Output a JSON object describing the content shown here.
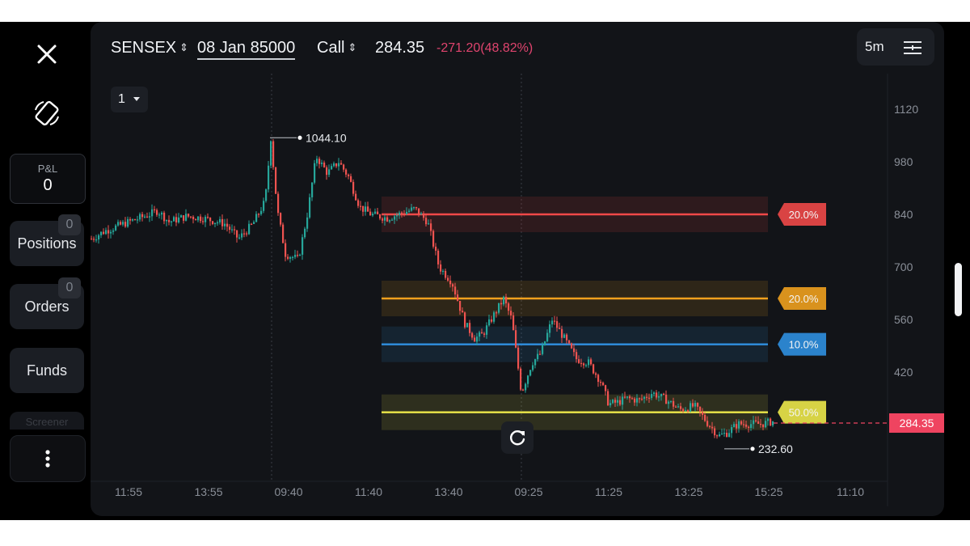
{
  "header": {
    "symbol": "SENSEX",
    "expiry": "08 Jan 85000",
    "option_type": "Call",
    "price": "284.35",
    "change": "-271.20(48.82%)",
    "timeframe": "5m"
  },
  "sidebar": {
    "pnl_label": "P&L",
    "pnl_value": "0",
    "positions_label": "Positions",
    "positions_count": "0",
    "orders_label": "Orders",
    "orders_count": "0",
    "funds_label": "Funds",
    "peek_label": "Screener"
  },
  "layout_selector": "1",
  "colors": {
    "bull": "#26a69a",
    "bear": "#ef5350",
    "red_level": "#f04848",
    "orange_level": "#f0a01e",
    "blue_level": "#2f8fe0",
    "yellow_level": "#ede84a"
  },
  "chart_data": {
    "type": "candlestick",
    "y_ticks": [
      "1120",
      "980",
      "840",
      "700",
      "560",
      "420"
    ],
    "x_ticks": [
      "11:55",
      "13:55",
      "09:40",
      "11:40",
      "13:40",
      "09:25",
      "11:25",
      "13:25",
      "15:25",
      "11:10"
    ],
    "ylim": [
      140,
      1150
    ],
    "high_label": "1044.10",
    "low_label": "232.60",
    "last_price": "284.35",
    "levels": [
      {
        "price": 840,
        "label": "20.0%",
        "color": "#f04848"
      },
      {
        "price": 616,
        "label": "20.0%",
        "color": "#f0a01e"
      },
      {
        "price": 494,
        "label": "10.0%",
        "color": "#2f8fe0"
      },
      {
        "price": 313,
        "label": "50.0%",
        "color": "#ede84a"
      }
    ]
  }
}
